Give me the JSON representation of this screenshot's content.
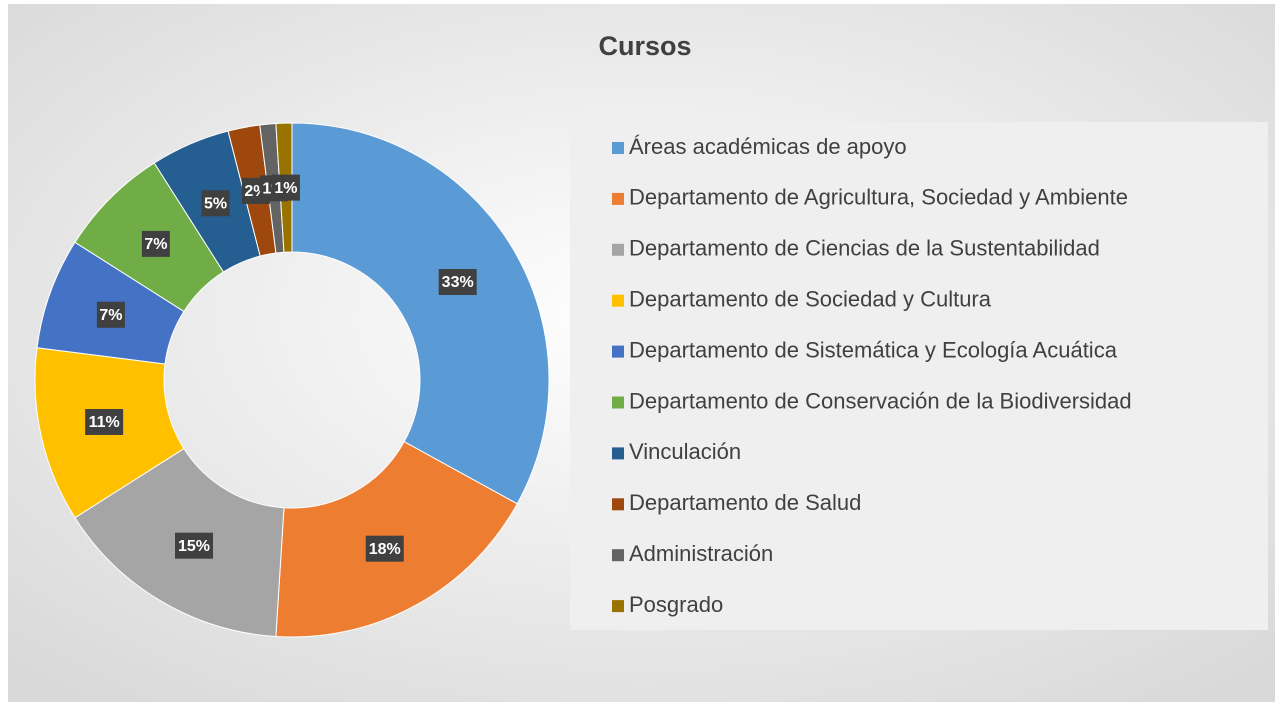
{
  "chart_data": {
    "type": "donut",
    "title": "Cursos",
    "categories": [
      "Áreas académicas de apoyo",
      "Departamento de Agricultura, Sociedad y Ambiente",
      "Departamento de Ciencias de la Sustentabilidad",
      "Departamento de Sociedad y Cultura",
      "Departamento de Sistemática y Ecología Acuática",
      "Departamento de Conservación de la Biodiversidad",
      "Vinculación",
      "Departamento de Salud",
      "Administración",
      "Posgrado"
    ],
    "values": [
      33,
      18,
      15,
      11,
      7,
      7,
      5,
      2,
      1,
      1
    ],
    "value_labels": [
      "33%",
      "18%",
      "15%",
      "11%",
      "7%",
      "7%",
      "5%",
      "2%",
      "1%",
      "1%"
    ],
    "colors": [
      "#5b9bd5",
      "#ed7d31",
      "#a5a5a5",
      "#ffc000",
      "#4472c4",
      "#70ad47",
      "#255e91",
      "#9e480e",
      "#636363",
      "#997300"
    ],
    "legend": "right"
  }
}
